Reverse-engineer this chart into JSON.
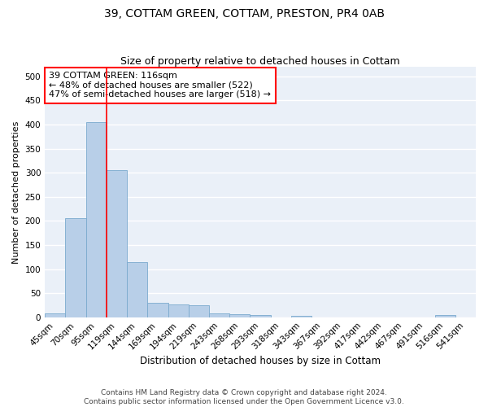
{
  "title": "39, COTTAM GREEN, COTTAM, PRESTON, PR4 0AB",
  "subtitle": "Size of property relative to detached houses in Cottam",
  "xlabel": "Distribution of detached houses by size in Cottam",
  "ylabel": "Number of detached properties",
  "categories": [
    "45sqm",
    "70sqm",
    "95sqm",
    "119sqm",
    "144sqm",
    "169sqm",
    "194sqm",
    "219sqm",
    "243sqm",
    "268sqm",
    "293sqm",
    "318sqm",
    "343sqm",
    "367sqm",
    "392sqm",
    "417sqm",
    "442sqm",
    "467sqm",
    "491sqm",
    "516sqm",
    "541sqm"
  ],
  "values": [
    8,
    205,
    405,
    305,
    115,
    30,
    27,
    25,
    8,
    6,
    4,
    0,
    3,
    0,
    0,
    0,
    0,
    0,
    0,
    4,
    0
  ],
  "bar_color": "#b8cfe8",
  "bar_edge_color": "#7aaace",
  "vline_x": 2.5,
  "vline_color": "red",
  "annotation_text": "39 COTTAM GREEN: 116sqm\n← 48% of detached houses are smaller (522)\n47% of semi-detached houses are larger (518) →",
  "annotation_box_color": "white",
  "annotation_box_edge_color": "red",
  "ylim": [
    0,
    520
  ],
  "yticks": [
    0,
    50,
    100,
    150,
    200,
    250,
    300,
    350,
    400,
    450,
    500
  ],
  "footnote": "Contains HM Land Registry data © Crown copyright and database right 2024.\nContains public sector information licensed under the Open Government Licence v3.0.",
  "background_color": "#eaf0f8",
  "grid_color": "white",
  "title_fontsize": 10,
  "subtitle_fontsize": 9,
  "xlabel_fontsize": 8.5,
  "ylabel_fontsize": 8,
  "tick_fontsize": 7.5,
  "annotation_fontsize": 8,
  "footnote_fontsize": 6.5
}
